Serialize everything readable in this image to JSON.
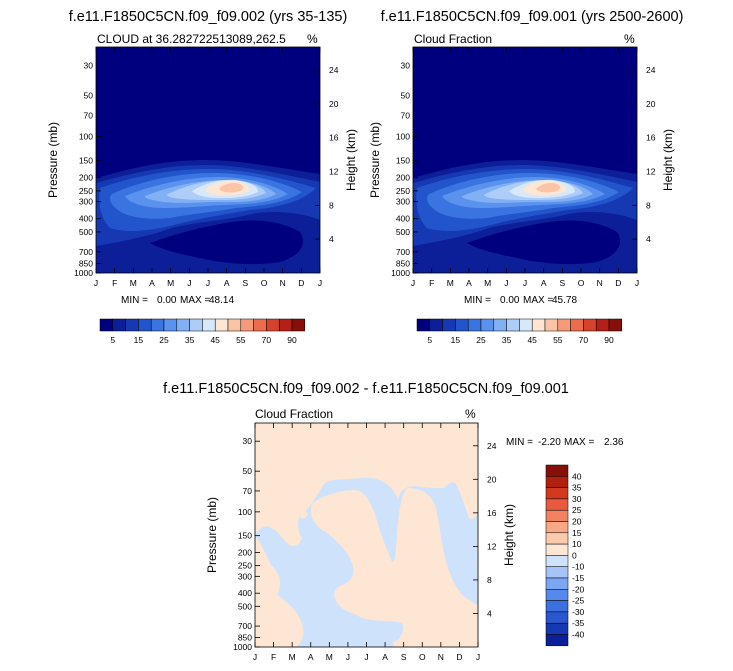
{
  "colors": {
    "levels": [
      "#00007f",
      "#0c1e98",
      "#1638b3",
      "#2255cc",
      "#3a74e0",
      "#5a92ee",
      "#82b0f4",
      "#adcdf8",
      "#d8e8fb",
      "#fde6d4",
      "#fbc4a6",
      "#f59a7a",
      "#ec6c4e",
      "#d6422c",
      "#b61f18",
      "#870f0a"
    ],
    "diff": [
      "#0c1e98",
      "#1638b3",
      "#2a57cf",
      "#3c6fe0",
      "#5589ec",
      "#7aa6f2",
      "#a6c4f7",
      "#cfe2fb",
      "#fde6d4",
      "#fbc9ab",
      "#f8a887",
      "#f38262",
      "#e85a3f",
      "#d2391f",
      "#b0200f",
      "#870f0a"
    ]
  },
  "chart_data": [
    {
      "id": "panel-1",
      "type": "heatmap",
      "title": "f.e11.F1850C5CN.f09_f09.002 (yrs 35-135)",
      "subtitle": "CLOUD at 36.282722513089,262.5",
      "units_label": "%",
      "xlabel": "",
      "ylabel": "Pressure (mb)",
      "ylabel_right": "Height (km)",
      "x_categories": [
        "J",
        "F",
        "M",
        "A",
        "M",
        "J",
        "J",
        "A",
        "S",
        "O",
        "N",
        "D",
        "J"
      ],
      "y_ticks": [
        30,
        50,
        70,
        100,
        150,
        200,
        250,
        300,
        400,
        500,
        700,
        850,
        1000
      ],
      "y_ticks_right": [
        24,
        20,
        16,
        12,
        8,
        4
      ],
      "ylim": [
        1000,
        22
      ],
      "min_label": "MIN =",
      "min_value": "0.00",
      "max_label": "MAX =",
      "max_value": "48.14",
      "colorbar_ticks": [
        "5",
        "15",
        "25",
        "35",
        "45",
        "55",
        "70",
        "90"
      ],
      "levels": [
        5,
        10,
        15,
        20,
        25,
        30,
        35,
        40,
        45,
        50,
        55,
        60,
        70,
        80,
        90
      ]
    },
    {
      "id": "panel-2",
      "type": "heatmap",
      "title": "f.e11.F1850C5CN.f09_f09.001 (yrs 2500-2600)",
      "subtitle": "Cloud Fraction",
      "units_label": "%",
      "xlabel": "",
      "ylabel": "Pressure (mb)",
      "ylabel_right": "Height (km)",
      "x_categories": [
        "J",
        "F",
        "M",
        "A",
        "M",
        "J",
        "J",
        "A",
        "S",
        "O",
        "N",
        "D",
        "J"
      ],
      "y_ticks": [
        30,
        50,
        70,
        100,
        150,
        200,
        250,
        300,
        400,
        500,
        700,
        850,
        1000
      ],
      "y_ticks_right": [
        24,
        20,
        16,
        12,
        8,
        4
      ],
      "ylim": [
        1000,
        22
      ],
      "min_label": "MIN =",
      "min_value": "0.00",
      "max_label": "MAX =",
      "max_value": "45.78",
      "colorbar_ticks": [
        "5",
        "15",
        "25",
        "35",
        "45",
        "55",
        "70",
        "90"
      ],
      "levels": [
        5,
        10,
        15,
        20,
        25,
        30,
        35,
        40,
        45,
        50,
        55,
        60,
        70,
        80,
        90
      ]
    },
    {
      "id": "panel-diff",
      "type": "heatmap",
      "title": "f.e11.F1850C5CN.f09_f09.002 - f.e11.F1850C5CN.f09_f09.001",
      "subtitle": "Cloud Fraction",
      "units_label": "%",
      "xlabel": "",
      "ylabel": "Pressure (mb)",
      "ylabel_right": "Height (km)",
      "x_categories": [
        "J",
        "F",
        "M",
        "A",
        "M",
        "J",
        "J",
        "A",
        "S",
        "O",
        "N",
        "D",
        "J"
      ],
      "y_ticks": [
        30,
        50,
        70,
        100,
        150,
        200,
        250,
        300,
        400,
        500,
        700,
        850,
        1000
      ],
      "y_ticks_right": [
        24,
        20,
        16,
        12,
        8,
        4
      ],
      "ylim": [
        1000,
        22
      ],
      "min_label": "MIN =",
      "min_value": "-2.20",
      "max_label": "MAX =",
      "max_value": "2.36",
      "colorbar_ticks": [
        "40",
        "35",
        "30",
        "25",
        "20",
        "15",
        "10",
        "0",
        "-10",
        "-15",
        "-20",
        "-25",
        "-30",
        "-35",
        "-40"
      ],
      "levels": [
        -40,
        -35,
        -30,
        -25,
        -20,
        -15,
        -10,
        0,
        10,
        15,
        20,
        25,
        30,
        35,
        40
      ]
    }
  ]
}
